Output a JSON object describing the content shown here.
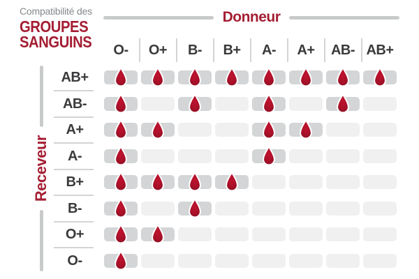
{
  "title": {
    "subtitle": "Compatibilité des",
    "heading_line1": "GROUPES",
    "heading_line2": "SANGUINS"
  },
  "axes": {
    "donor": "Donneur",
    "receiver": "Receveur"
  },
  "chart_data": {
    "type": "heatmap",
    "title": "Compatibilité des GROUPES SANGUINS",
    "xlabel": "Donneur",
    "ylabel": "Receveur",
    "x_categories": [
      "O-",
      "O+",
      "B-",
      "B+",
      "A-",
      "A+",
      "AB-",
      "AB+"
    ],
    "y_categories": [
      "AB+",
      "AB-",
      "A+",
      "A-",
      "B+",
      "B-",
      "O+",
      "O-"
    ],
    "values": [
      [
        1,
        1,
        1,
        1,
        1,
        1,
        1,
        1
      ],
      [
        1,
        0,
        1,
        0,
        1,
        0,
        1,
        0
      ],
      [
        1,
        1,
        0,
        0,
        1,
        1,
        0,
        0
      ],
      [
        1,
        0,
        0,
        0,
        1,
        0,
        0,
        0
      ],
      [
        1,
        1,
        1,
        1,
        0,
        0,
        0,
        0
      ],
      [
        1,
        0,
        1,
        0,
        0,
        0,
        0,
        0
      ],
      [
        1,
        1,
        0,
        0,
        0,
        0,
        0,
        0
      ],
      [
        1,
        0,
        0,
        0,
        0,
        0,
        0,
        0
      ]
    ],
    "value_meaning": "1 = compatible (blood drop icon shown), 0 = not compatible (empty cell)",
    "legend_position": "none",
    "grid": "off"
  },
  "colors": {
    "accent_red": "#a41e33",
    "drop_red_light": "#c0122f",
    "drop_red": "#aa1129",
    "drop_red_dark": "#8a0e22",
    "cell_filled_gray": "#d3d5d6",
    "cell_empty_gray": "#f0f0f0",
    "line_gray": "#c8cacb",
    "divider_gray": "#d2d4d5",
    "text_dark": "#3a3a3c",
    "text_gray": "#85888b",
    "background": "#ffffff"
  }
}
